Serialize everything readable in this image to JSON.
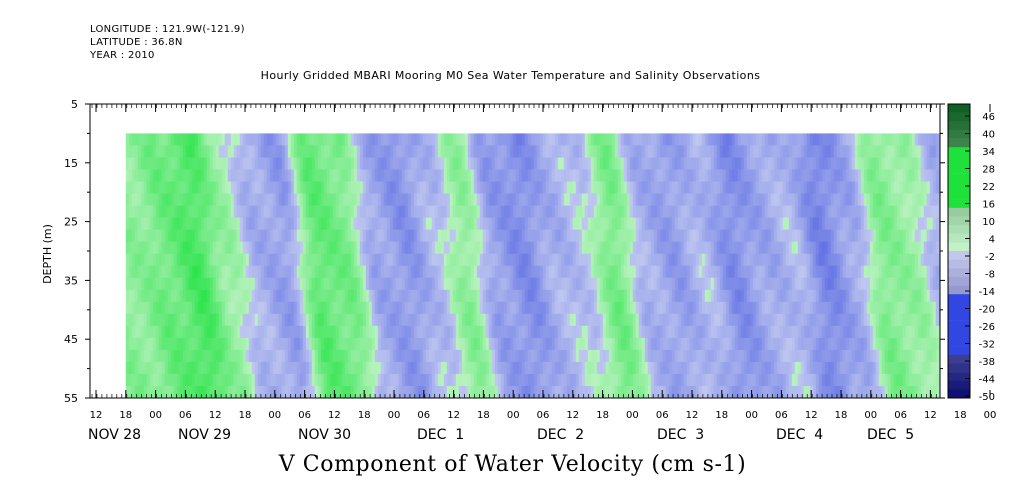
{
  "header": {
    "longitude": "LONGITUDE : 121.9W(-121.9)",
    "latitude": "LATITUDE : 36.8N",
    "year": "YEAR : 2010",
    "title": "Hourly Gridded MBARI Mooring M0 Sea Water Temperature and Salinity Observations"
  },
  "chart_data": {
    "type": "heatmap",
    "title": "Hourly Gridded MBARI Mooring M0 Sea Water Temperature and Salinity Observations",
    "xlabel": "",
    "ylabel": "DEPTH (m)",
    "units_label": "V Component of Water Velocity (cm s-1)",
    "y_ticks": [
      5,
      15,
      25,
      35,
      45,
      55
    ],
    "y_range": [
      5,
      55
    ],
    "data_depth_range": [
      10,
      55
    ],
    "x_hour_ticks": [
      "12",
      "18",
      "00",
      "06",
      "12",
      "18",
      "00",
      "06",
      "12",
      "18",
      "00",
      "06",
      "12",
      "18",
      "00",
      "06",
      "12",
      "18",
      "00",
      "06",
      "12",
      "18",
      "00",
      "06",
      "12",
      "18",
      "00",
      "06",
      "12",
      "18",
      "00",
      "06",
      "12"
    ],
    "x_day_labels": [
      "NOV 28",
      "NOV 29",
      "NOV 30",
      "DEC  1",
      "DEC  2",
      "DEC  3",
      "DEC  4",
      "DEC  5"
    ],
    "x_range": [
      "NOV 28 12:00",
      "DEC 5 14:00"
    ],
    "data_start": "NOV 28 18:00",
    "colorbar": {
      "tick_labels": [
        "46",
        "40",
        "34",
        "28",
        "22",
        "16",
        "10",
        "4",
        "-2",
        "-8",
        "-14",
        "-20",
        "-26",
        "-32",
        "-38",
        "-44",
        "-50"
      ],
      "range": [
        -50,
        50
      ]
    },
    "colors": {
      "negative": "#3344dd",
      "near_zero_negative": "#c0c8f0",
      "near_zero_positive": "#b8f0c0",
      "positive": "#22dd44",
      "blank": "#ffffff"
    },
    "time_series_v_by_period": {
      "hours_from_nov28_18": [
        0,
        6,
        12,
        18,
        24,
        30,
        36,
        42,
        48,
        54,
        60,
        66,
        72,
        78,
        84,
        90,
        96,
        102,
        108,
        114,
        120,
        126,
        132,
        138,
        144,
        150,
        156,
        162,
        168
      ],
      "v_cm_s": [
        8,
        14,
        20,
        6,
        -6,
        -10,
        16,
        12,
        -8,
        -12,
        -4,
        8,
        -10,
        -14,
        -6,
        -2,
        12,
        -6,
        -10,
        -4,
        -14,
        -8,
        -4,
        -16,
        -8,
        10,
        6,
        -6,
        20
      ]
    }
  }
}
